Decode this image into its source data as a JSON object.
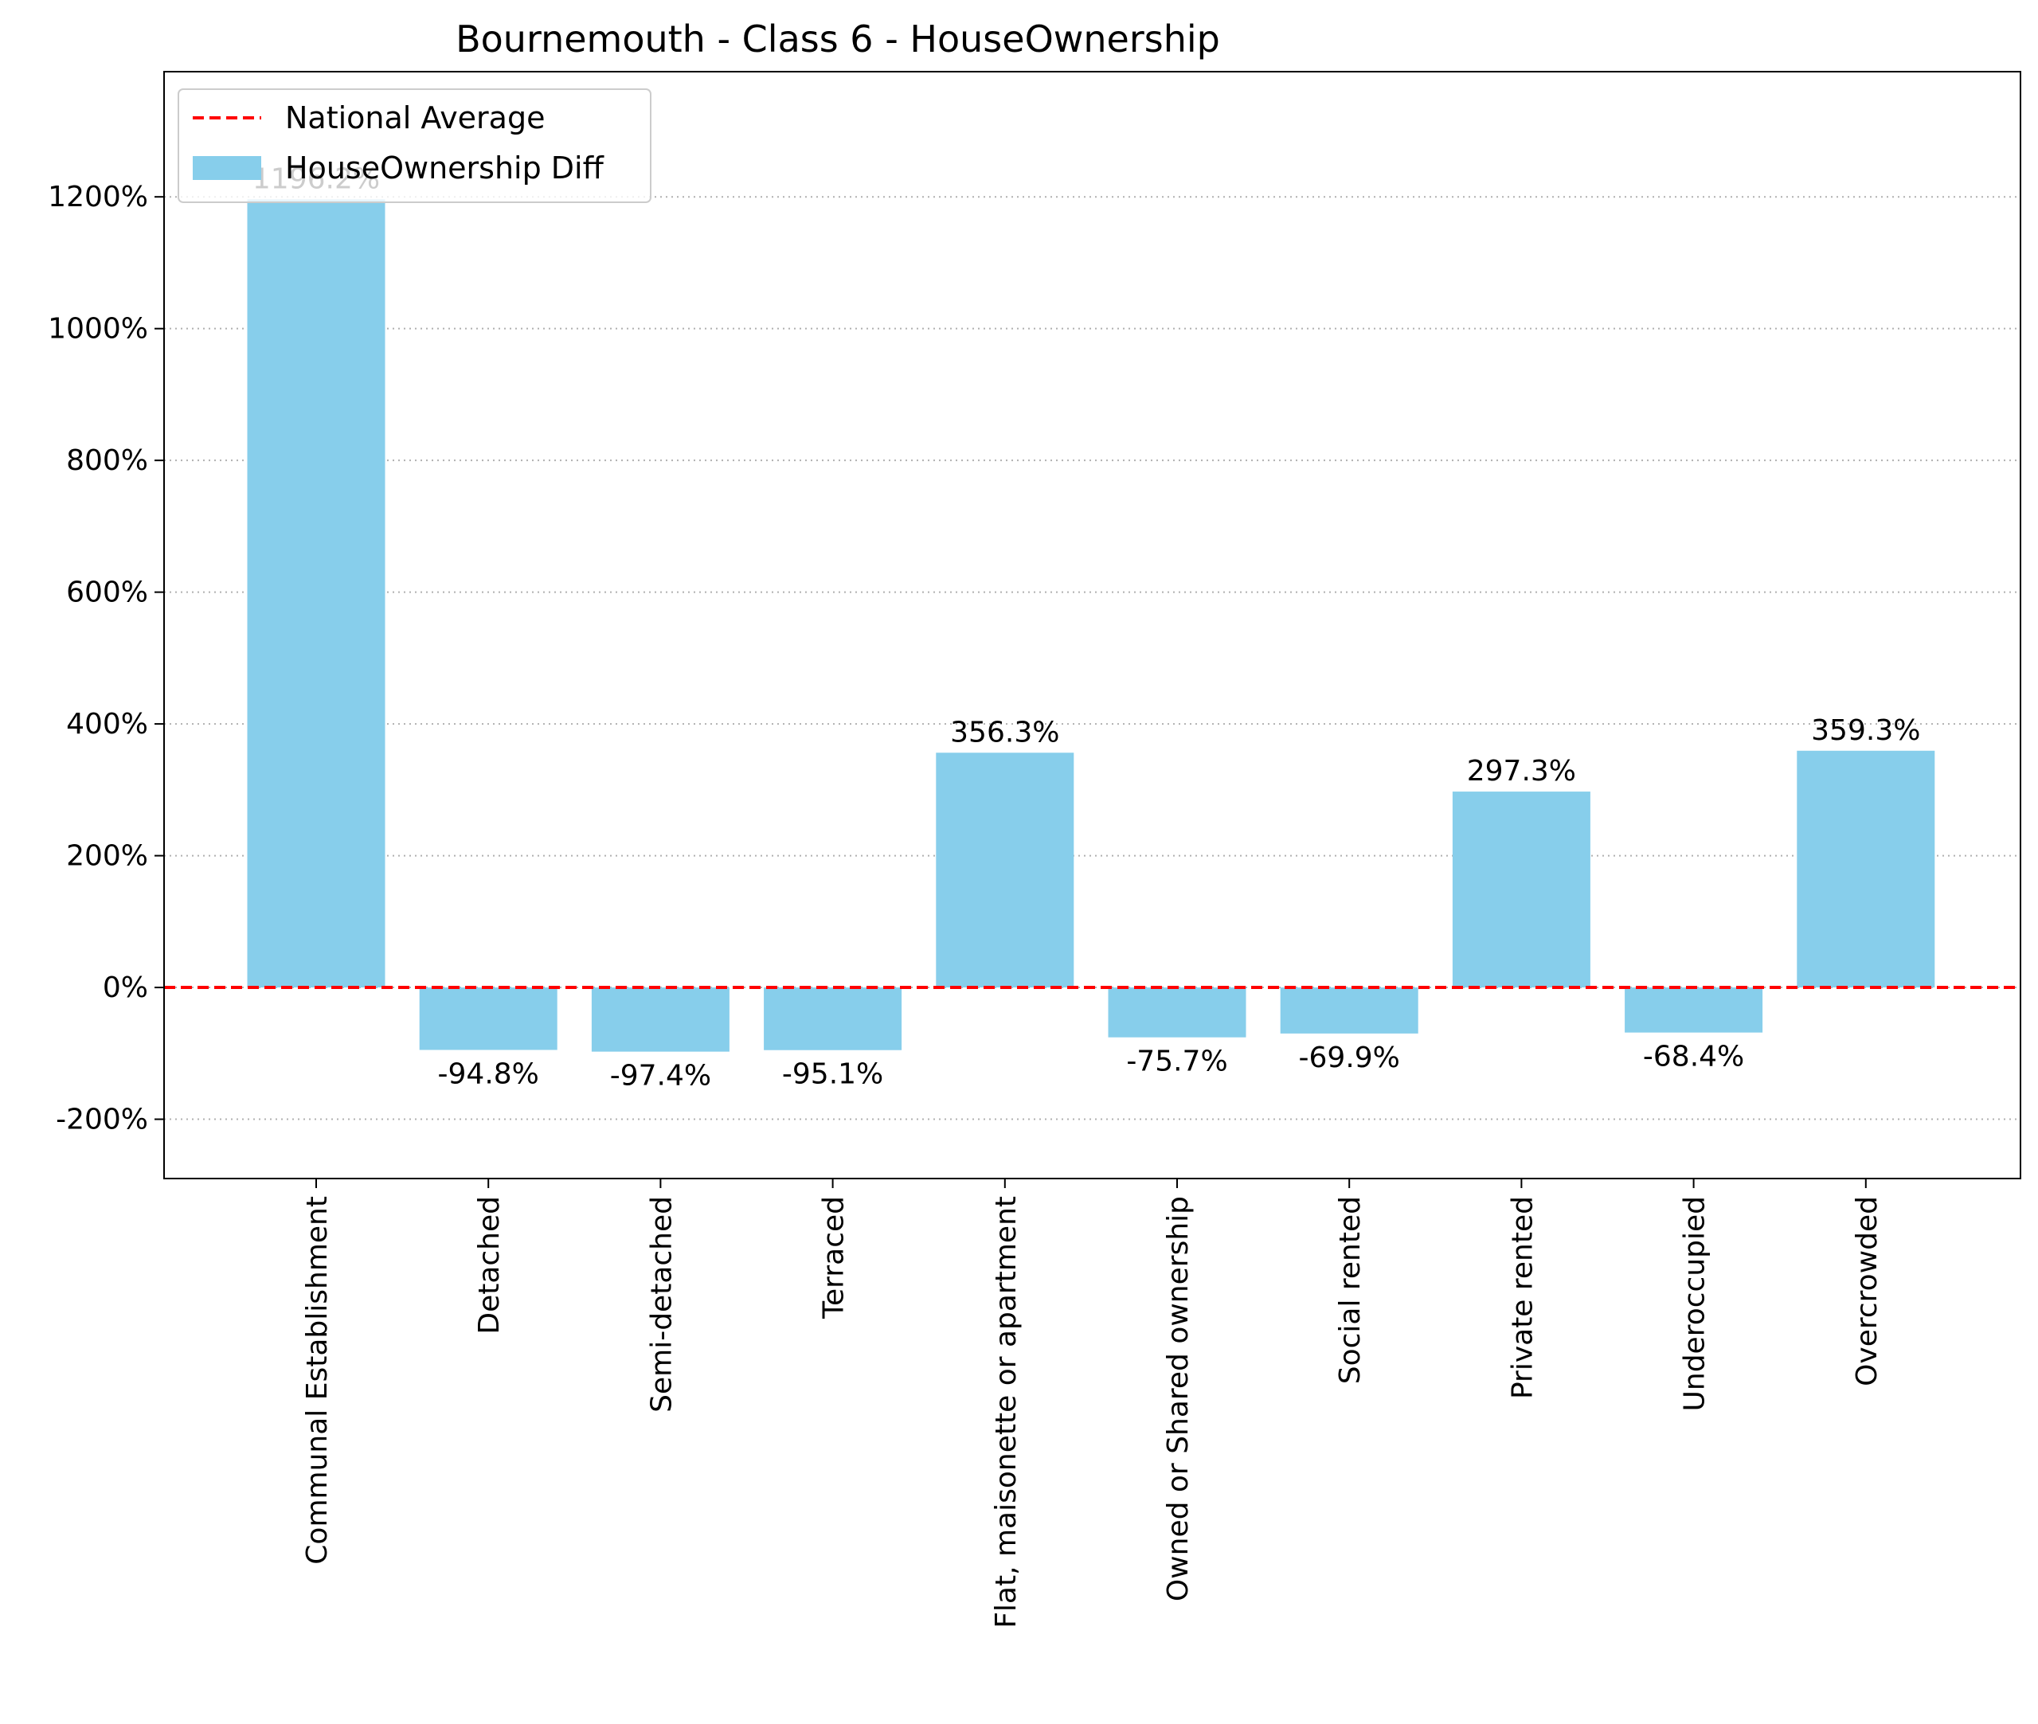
{
  "chart_data": {
    "type": "bar",
    "title": "Bournemouth - Class 6 - HouseOwnership",
    "xlabel": "",
    "ylabel": "",
    "categories": [
      "Communal Establishment",
      "Detached",
      "Semi-detached",
      "Terraced",
      "Flat, maisonette or apartment",
      "Owned or Shared ownership",
      "Social rented",
      "Private rented",
      "Underoccupied",
      "Overcrowded"
    ],
    "series": [
      {
        "name": "HouseOwnership Diff",
        "values": [
          1196.2,
          -94.8,
          -97.4,
          -95.1,
          356.3,
          -75.7,
          -69.9,
          297.3,
          -68.4,
          359.3
        ],
        "labels": [
          "1196.2%",
          "-94.8%",
          "-97.4%",
          "-95.1%",
          "356.3%",
          "-75.7%",
          "-69.9%",
          "297.3%",
          "-68.4%",
          "359.3%"
        ],
        "color": "#87ceeb"
      }
    ],
    "reference_line": {
      "name": "National Average",
      "value": 0,
      "color": "#ff0000",
      "style": "dashed"
    },
    "yticks": [
      -200,
      0,
      200,
      400,
      600,
      800,
      1000,
      1200
    ],
    "ytick_labels": [
      "-200%",
      "0%",
      "200%",
      "400%",
      "600%",
      "800%",
      "1000%",
      "1200%"
    ],
    "ylim": [
      -290,
      1390
    ],
    "grid": "y-dotted",
    "legend_position": "upper-left"
  }
}
